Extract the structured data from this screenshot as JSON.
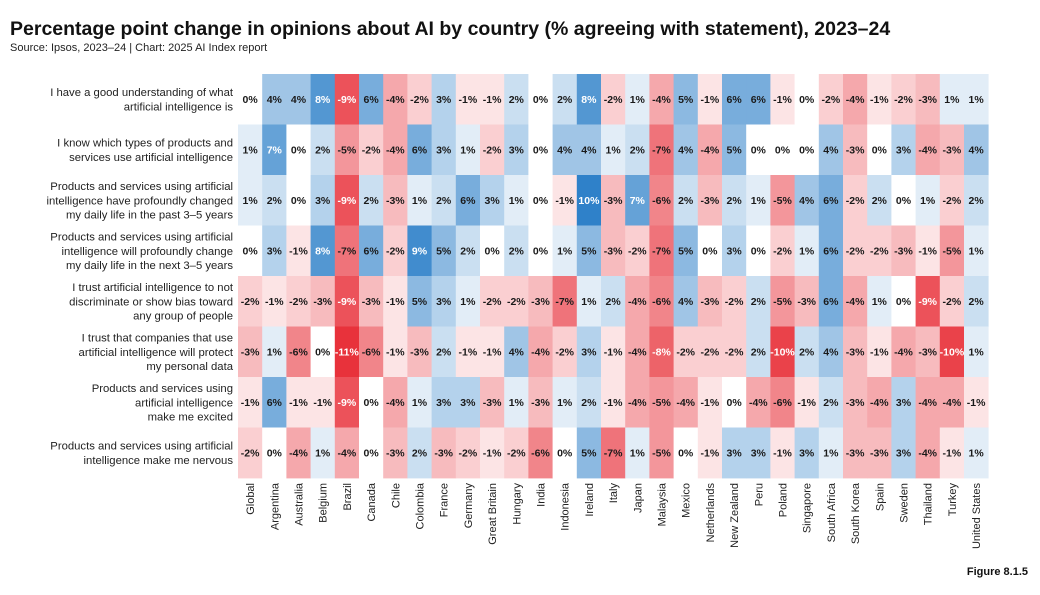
{
  "chart_data": {
    "type": "heatmap",
    "title": "Percentage point change in opinions about AI by country (% agreeing with statement), 2023–24",
    "subtitle": "Source: Ipsos, 2023–24 | Chart: 2025 AI Index report",
    "figure_label": "Figure 8.1.5",
    "color_scale": {
      "min": -11,
      "max": 10,
      "negative": "#e8323b",
      "positive": "#2f81c9",
      "neutral": "#ffffff"
    },
    "columns": [
      "Global",
      "Argentina",
      "Australia",
      "Belgium",
      "Brazil",
      "Canada",
      "Chile",
      "Colombia",
      "France",
      "Germany",
      "Great Britain",
      "Hungary",
      "India",
      "Indonesia",
      "Ireland",
      "Italy",
      "Japan",
      "Malaysia",
      "Mexico",
      "Netherlands",
      "New Zealand",
      "Peru",
      "Poland",
      "Singapore",
      "South Africa",
      "South Korea",
      "Spain",
      "Sweden",
      "Thailand",
      "Turkey",
      "United States"
    ],
    "rows": [
      {
        "label": [
          "I have a good understanding of what",
          "artificial intelligence is"
        ],
        "values": [
          0,
          4,
          4,
          8,
          -9,
          6,
          -4,
          -2,
          3,
          -1,
          -1,
          2,
          0,
          2,
          8,
          -2,
          1,
          -4,
          5,
          -1,
          6,
          6,
          -1,
          0,
          -2,
          -4,
          -1,
          -2,
          -3,
          1,
          1
        ]
      },
      {
        "label": [
          "I know which types of products and",
          "services use artificial intelligence"
        ],
        "values": [
          1,
          7,
          0,
          2,
          -5,
          -2,
          -4,
          6,
          3,
          1,
          -2,
          3,
          0,
          4,
          4,
          1,
          2,
          -7,
          4,
          -4,
          5,
          0,
          0,
          0,
          4,
          -3,
          0,
          3,
          -4,
          -3,
          4
        ]
      },
      {
        "label": [
          "Products and services using artificial",
          "intelligence have profoundly changed",
          "my daily life in the past 3–5 years"
        ],
        "values": [
          1,
          2,
          0,
          3,
          -9,
          2,
          -3,
          1,
          2,
          6,
          3,
          1,
          0,
          -1,
          10,
          -3,
          7,
          -6,
          2,
          -3,
          2,
          1,
          -5,
          4,
          6,
          -2,
          2,
          0,
          1,
          -2,
          2
        ]
      },
      {
        "label": [
          "Products and services using artificial",
          "intelligence will profoundly change",
          "my daily life in the next 3–5 years"
        ],
        "values": [
          0,
          3,
          -1,
          8,
          -7,
          6,
          -2,
          9,
          5,
          2,
          0,
          2,
          0,
          1,
          5,
          -3,
          -2,
          -7,
          5,
          0,
          3,
          0,
          -2,
          1,
          6,
          -2,
          -2,
          -3,
          -1,
          -5,
          1
        ]
      },
      {
        "label": [
          "I trust artificial intelligence to not",
          "discriminate or show bias toward",
          "any group of people"
        ],
        "values": [
          -2,
          -1,
          -2,
          -3,
          -9,
          -3,
          -1,
          5,
          3,
          1,
          -2,
          -2,
          -3,
          -7,
          1,
          2,
          -4,
          -6,
          4,
          -3,
          -2,
          2,
          -5,
          -3,
          6,
          -4,
          1,
          0,
          -9,
          -2,
          2
        ]
      },
      {
        "label": [
          "I trust that companies that use",
          "artificial intelligence will protect",
          "my personal data"
        ],
        "values": [
          -3,
          1,
          -6,
          0,
          -11,
          -6,
          -1,
          -3,
          2,
          -1,
          -1,
          4,
          -4,
          -2,
          3,
          -1,
          -4,
          -8,
          -2,
          -2,
          -2,
          2,
          -10,
          2,
          4,
          -3,
          -1,
          -4,
          -3,
          -10,
          1
        ]
      },
      {
        "label": [
          "Products and services using",
          "artificial intelligence",
          "make me excited"
        ],
        "values": [
          -1,
          6,
          -1,
          -1,
          -9,
          0,
          -4,
          1,
          3,
          3,
          -3,
          1,
          -3,
          1,
          2,
          -1,
          -4,
          -5,
          -4,
          -1,
          0,
          -4,
          -6,
          -1,
          2,
          -3,
          -4,
          3,
          -4,
          -4,
          -1
        ]
      },
      {
        "label": [
          "Products and services using artificial",
          "intelligence make me nervous"
        ],
        "values": [
          -2,
          0,
          -4,
          1,
          -4,
          0,
          -3,
          2,
          -3,
          -2,
          -1,
          -2,
          -6,
          0,
          5,
          -7,
          1,
          -5,
          0,
          -1,
          3,
          3,
          -1,
          3,
          1,
          -3,
          -3,
          3,
          -4,
          -1,
          1
        ]
      }
    ]
  }
}
